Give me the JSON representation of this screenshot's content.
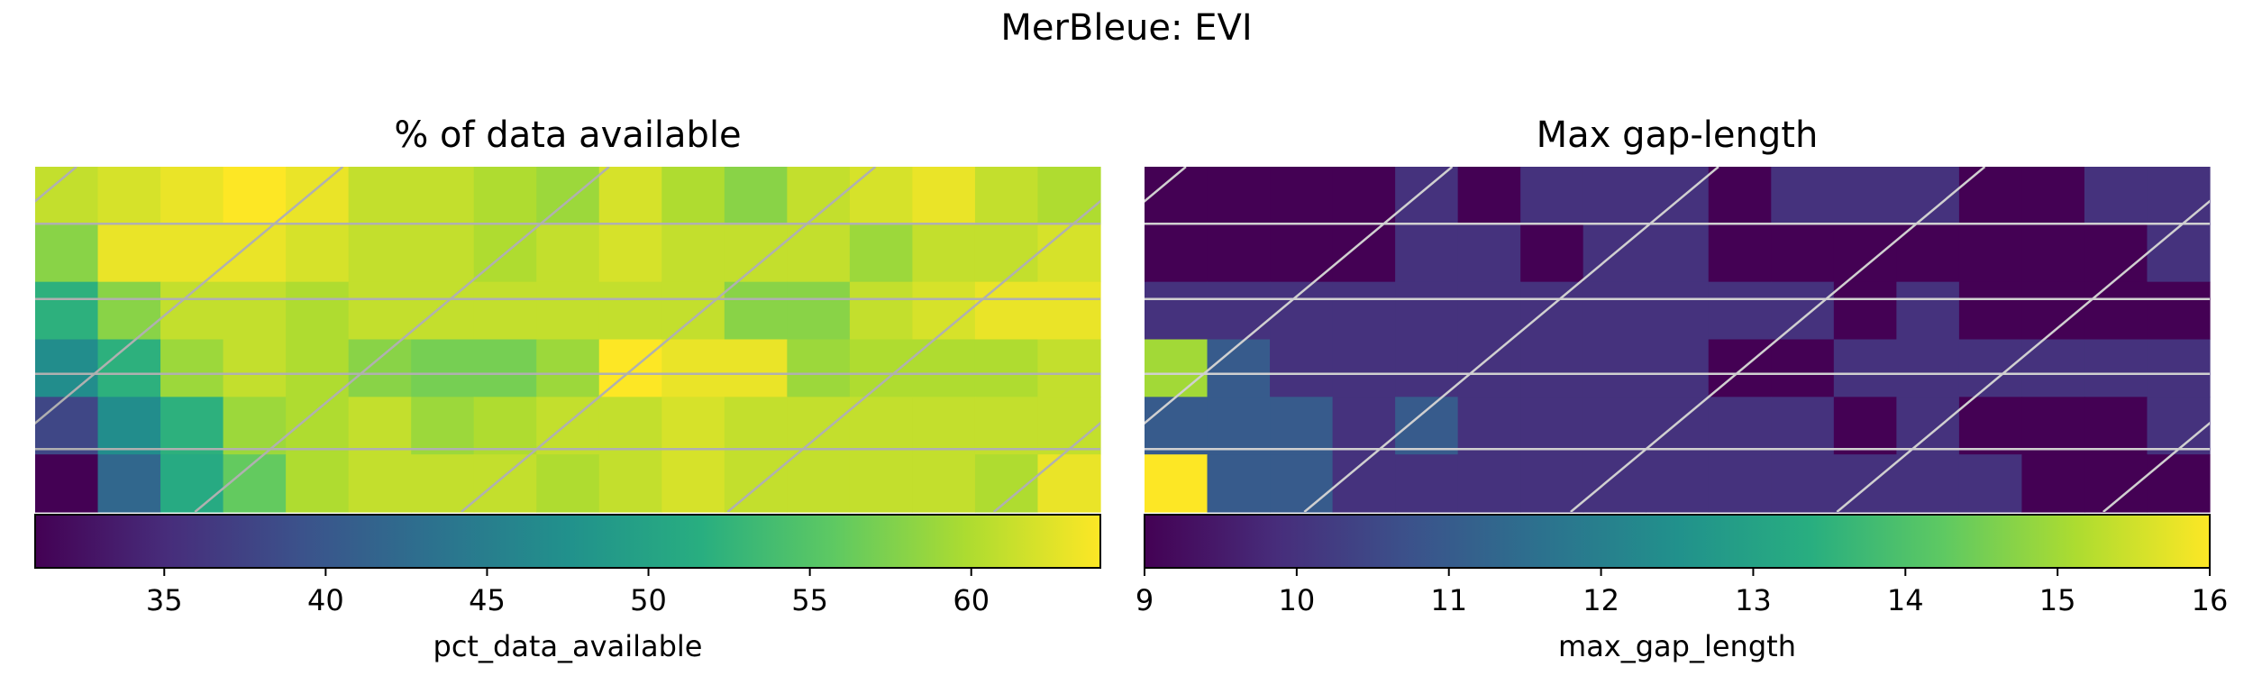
{
  "figure": {
    "suptitle": "MerBleue: EVI"
  },
  "chart_data": [
    {
      "type": "heatmap",
      "title": "% of data available",
      "colorbar_label": "pct_data_available",
      "colormap": "viridis",
      "vmin": 31,
      "vmax": 64,
      "colorbar_ticks": [
        "35",
        "40",
        "45",
        "50",
        "55",
        "60"
      ],
      "colorbar_tick_values": [
        35,
        40,
        45,
        50,
        55,
        60
      ],
      "rows": 6,
      "cols": 17,
      "values": [
        [
          61,
          62,
          63,
          64,
          63,
          61,
          61,
          60,
          59,
          62,
          60,
          58,
          61,
          62,
          63,
          61,
          60
        ],
        [
          58,
          63,
          63,
          63,
          62,
          61,
          61,
          60,
          61,
          62,
          61,
          61,
          61,
          59,
          61,
          61,
          62
        ],
        [
          52,
          58,
          61,
          61,
          60,
          61,
          61,
          61,
          61,
          61,
          61,
          58,
          58,
          61,
          62,
          63,
          63
        ],
        [
          47,
          52,
          59,
          61,
          60,
          58,
          57,
          57,
          59,
          64,
          63,
          63,
          59,
          60,
          60,
          60,
          61
        ],
        [
          38,
          47,
          52,
          59,
          60,
          61,
          59,
          60,
          61,
          61,
          62,
          61,
          61,
          61,
          61,
          61,
          61
        ],
        [
          31,
          42,
          51,
          56,
          60,
          61,
          61,
          61,
          60,
          61,
          62,
          61,
          61,
          61,
          61,
          60,
          63
        ]
      ]
    },
    {
      "type": "heatmap",
      "title": "Max gap-length",
      "colorbar_label": "max_gap_length",
      "colormap": "viridis",
      "vmin": 9,
      "vmax": 16,
      "colorbar_ticks": [
        "9",
        "10",
        "11",
        "12",
        "13",
        "14",
        "15",
        "16"
      ],
      "colorbar_tick_values": [
        9,
        10,
        11,
        12,
        13,
        14,
        15,
        16
      ],
      "rows": 6,
      "cols": 17,
      "values": [
        [
          9,
          9,
          9,
          9,
          10,
          9,
          10,
          10,
          10,
          9,
          10,
          10,
          10,
          9,
          9,
          10,
          10
        ],
        [
          9,
          9,
          9,
          9,
          10,
          10,
          9,
          10,
          10,
          9,
          9,
          9,
          9,
          9,
          9,
          9,
          10
        ],
        [
          10,
          10,
          10,
          10,
          10,
          10,
          10,
          10,
          10,
          10,
          10,
          9,
          10,
          9,
          9,
          9,
          9
        ],
        [
          15,
          11,
          10,
          10,
          10,
          10,
          10,
          10,
          10,
          9,
          9,
          10,
          10,
          10,
          10,
          10,
          10
        ],
        [
          11,
          11,
          11,
          10,
          11,
          10,
          10,
          10,
          10,
          10,
          10,
          9,
          10,
          9,
          9,
          9,
          10
        ],
        [
          16,
          11,
          11,
          10,
          10,
          10,
          10,
          10,
          10,
          10,
          10,
          10,
          10,
          10,
          9,
          9,
          9
        ]
      ]
    }
  ]
}
